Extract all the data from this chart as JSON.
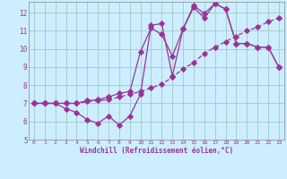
{
  "xlabel": "Windchill (Refroidissement éolien,°C)",
  "background_color": "#cceeff",
  "grid_color": "#aacccc",
  "line_color": "#993399",
  "xlim": [
    -0.5,
    23.5
  ],
  "ylim": [
    5,
    12.6
  ],
  "yticks": [
    5,
    6,
    7,
    8,
    9,
    10,
    11,
    12
  ],
  "xticks": [
    0,
    1,
    2,
    3,
    4,
    5,
    6,
    7,
    8,
    9,
    10,
    11,
    12,
    13,
    14,
    15,
    16,
    17,
    18,
    19,
    20,
    21,
    22,
    23
  ],
  "series1_x": [
    0,
    1,
    2,
    3,
    4,
    5,
    6,
    7,
    8,
    9,
    10,
    11,
    12,
    13,
    14,
    15,
    16,
    17,
    18,
    19,
    20,
    21,
    22,
    23
  ],
  "series1_y": [
    7.0,
    7.0,
    7.0,
    6.7,
    6.5,
    6.1,
    5.9,
    6.3,
    5.8,
    6.3,
    7.5,
    11.3,
    11.4,
    8.5,
    11.1,
    12.3,
    11.7,
    12.5,
    12.2,
    10.3,
    10.3,
    10.1,
    10.1,
    9.0
  ],
  "series2_x": [
    0,
    1,
    2,
    3,
    4,
    5,
    6,
    7,
    8,
    9,
    10,
    11,
    12,
    13,
    14,
    15,
    16,
    17,
    18,
    19,
    20,
    21,
    22,
    23
  ],
  "series2_y": [
    7.0,
    7.0,
    7.0,
    7.0,
    7.0,
    7.1,
    7.15,
    7.2,
    7.35,
    7.5,
    7.65,
    7.85,
    8.05,
    8.45,
    8.9,
    9.25,
    9.75,
    10.1,
    10.4,
    10.7,
    11.0,
    11.2,
    11.5,
    11.7
  ],
  "series3_x": [
    0,
    1,
    2,
    3,
    4,
    5,
    6,
    7,
    8,
    9,
    10,
    11,
    12,
    13,
    14,
    15,
    16,
    17,
    18,
    19,
    20,
    21,
    22,
    23
  ],
  "series3_y": [
    7.0,
    7.0,
    7.0,
    7.0,
    7.0,
    7.15,
    7.2,
    7.35,
    7.55,
    7.65,
    9.85,
    11.15,
    10.8,
    9.6,
    11.1,
    12.4,
    11.95,
    12.5,
    12.2,
    10.3,
    10.3,
    10.1,
    10.1,
    9.0
  ]
}
